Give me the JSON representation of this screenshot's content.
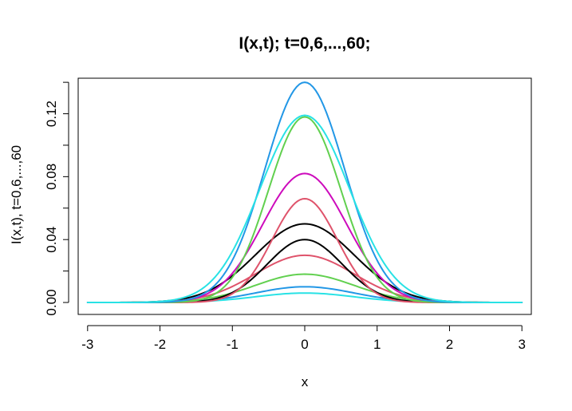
{
  "chart_data": {
    "type": "line",
    "title": "I(x,t); t=0,6,...,60;",
    "xlabel": "x",
    "ylabel": "I(x,t), t=0,6,...,60",
    "xlim": [
      -3.13,
      3.13
    ],
    "ylim": [
      -0.0076,
      0.1426
    ],
    "x_ticks": [
      -3,
      -2,
      -1,
      0,
      1,
      2,
      3
    ],
    "x_tick_labels": [
      "-3",
      "-2",
      "-1",
      "0",
      "1",
      "2",
      "3"
    ],
    "y_ticks": [
      0.0,
      0.04,
      0.08,
      0.12
    ],
    "y_tick_labels": [
      "0.00",
      "0.04",
      "0.08",
      "0.12"
    ],
    "y_minor_ticks": [
      0.02,
      0.06,
      0.1,
      0.14
    ],
    "grid": false,
    "legend": "none",
    "series": [
      {
        "color": "#000000",
        "peak": 0.05,
        "sigma": 0.68,
        "x_range": [
          -2.6,
          2.6
        ]
      },
      {
        "color": "#DF536B",
        "peak": 0.03,
        "sigma": 0.68,
        "x_range": [
          -2.6,
          2.6
        ]
      },
      {
        "color": "#61D04F",
        "peak": 0.018,
        "sigma": 0.68,
        "x_range": [
          -2.6,
          2.6
        ]
      },
      {
        "color": "#2297E6",
        "peak": 0.01,
        "sigma": 0.68,
        "x_range": [
          -2.6,
          2.6
        ]
      },
      {
        "color": "#28E2E5",
        "peak": 0.006,
        "sigma": 0.68,
        "x_range": [
          -3.0,
          3.0
        ]
      },
      {
        "color": "#CD0BBC",
        "peak": 0.082,
        "sigma": 0.58,
        "x_range": [
          -3.0,
          3.0
        ]
      },
      {
        "color": "#000000",
        "peak": 0.04,
        "sigma": 0.52,
        "x_range": [
          -2.6,
          2.6
        ]
      },
      {
        "color": "#DF536B",
        "peak": 0.066,
        "sigma": 0.45,
        "x_range": [
          -2.6,
          2.6
        ]
      },
      {
        "color": "#61D04F",
        "peak": 0.118,
        "sigma": 0.5,
        "x_range": [
          -2.6,
          2.6
        ]
      },
      {
        "color": "#2297E6",
        "peak": 0.14,
        "sigma": 0.55,
        "x_range": [
          -3.0,
          3.0
        ]
      },
      {
        "color": "#28E2E5",
        "peak": 0.119,
        "sigma": 0.62,
        "x_range": [
          -3.0,
          3.0
        ]
      }
    ]
  }
}
